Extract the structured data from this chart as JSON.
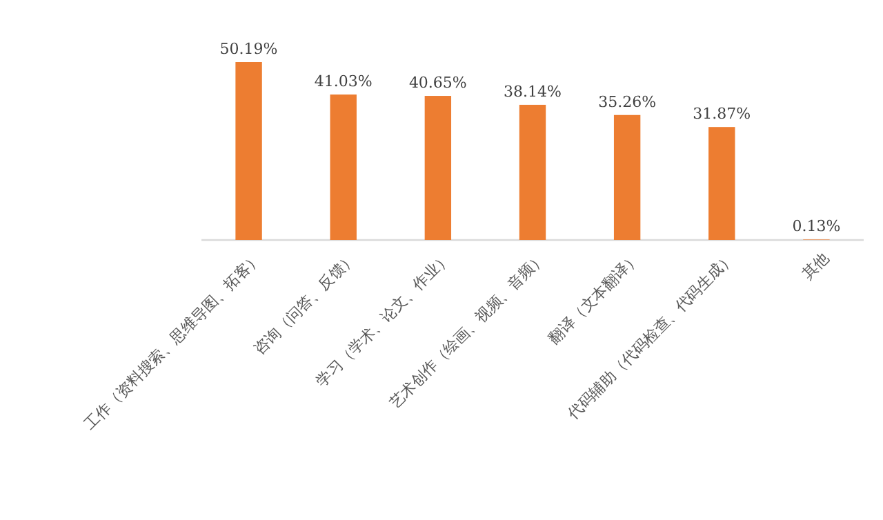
{
  "chart_data": {
    "type": "bar",
    "categories": [
      "工作（资料搜索、思维导图、拓客）",
      "咨询（问答、反馈）",
      "学习（学术、论文、作业）",
      "艺术创作（绘画、视频、音频）",
      "翻译（文本翻译）",
      "代码辅助（代码检查、代码生成）",
      "其他"
    ],
    "values": [
      50.19,
      41.03,
      40.65,
      38.14,
      35.26,
      31.87,
      0.13
    ],
    "value_labels": [
      "50.19%",
      "41.03%",
      "40.65%",
      "38.14%",
      "35.26%",
      "31.87%",
      "0.13%"
    ],
    "color": "#ed7d31"
  }
}
